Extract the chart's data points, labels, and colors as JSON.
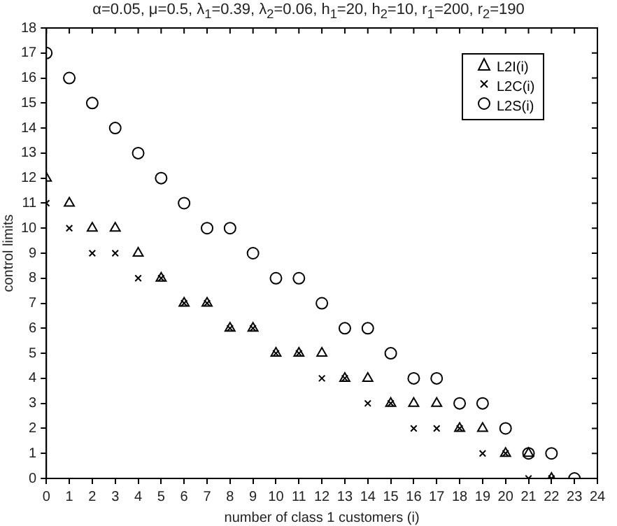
{
  "chart_data": {
    "type": "scatter",
    "title": "α=0.05, μ=0.5, λ$_{1}$=0.39, λ$_{2}$=0.06, h$_{1}$=20, h$_{2}$=10, r$_{1}$=200, r$_{2}$=190",
    "xlabel": "number of class 1 customers (i)",
    "ylabel": "control limits",
    "x": [
      0,
      1,
      2,
      3,
      4,
      5,
      6,
      7,
      8,
      9,
      10,
      11,
      12,
      13,
      14,
      15,
      16,
      17,
      18,
      19,
      20,
      21,
      22,
      23
    ],
    "series": [
      {
        "name": "L2I(i)",
        "color": "#000000",
        "marker": "triangle",
        "values": [
          12,
          11,
          10,
          10,
          9,
          8,
          7,
          7,
          6,
          6,
          5,
          5,
          5,
          4,
          4,
          3,
          3,
          3,
          2,
          2,
          1,
          1,
          0,
          null
        ]
      },
      {
        "name": "L2C(i)",
        "color": "#000000",
        "marker": "cross",
        "values": [
          11,
          10,
          9,
          9,
          8,
          8,
          7,
          7,
          6,
          6,
          5,
          5,
          4,
          4,
          3,
          3,
          2,
          2,
          2,
          1,
          1,
          0,
          0,
          null
        ]
      },
      {
        "name": "L2S(i)",
        "color": "#000000",
        "marker": "circle",
        "values": [
          17,
          16,
          15,
          14,
          13,
          12,
          11,
          10,
          10,
          9,
          8,
          8,
          7,
          6,
          6,
          5,
          4,
          4,
          3,
          3,
          2,
          1,
          1,
          0
        ]
      }
    ],
    "xlim": [
      0,
      24
    ],
    "xticks": [
      0,
      1,
      2,
      3,
      4,
      5,
      6,
      7,
      8,
      9,
      10,
      11,
      12,
      13,
      14,
      15,
      16,
      17,
      18,
      19,
      20,
      21,
      22,
      23,
      24
    ],
    "ylim": [
      0,
      18
    ],
    "yticks": [
      0,
      1,
      2,
      3,
      4,
      5,
      6,
      7,
      8,
      9,
      10,
      11,
      12,
      13,
      14,
      15,
      16,
      17,
      18
    ],
    "grid": false,
    "legend": "top right"
  }
}
